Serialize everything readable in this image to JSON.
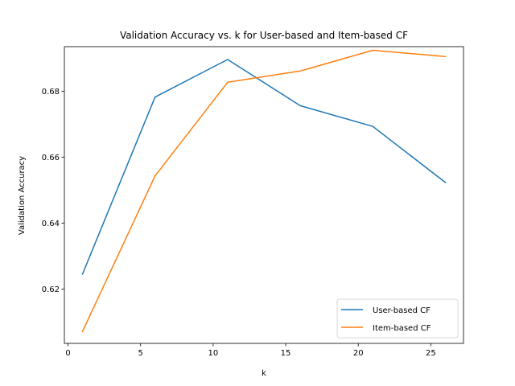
{
  "chart_data": {
    "type": "line",
    "title": "Validation Accuracy vs. k for User-based and Item-based CF",
    "xlabel": "k",
    "ylabel": "Validation Accuracy",
    "xlim": [
      -0.25,
      27.25
    ],
    "ylim": [
      0.6035,
      0.6935
    ],
    "xticks": [
      0,
      5,
      10,
      15,
      20,
      25
    ],
    "yticks": [
      0.62,
      0.64,
      0.66,
      0.68
    ],
    "ytick_labels": [
      "0.62",
      "0.64",
      "0.66",
      "0.68"
    ],
    "x": [
      1,
      6,
      11,
      16,
      21,
      26
    ],
    "series": [
      {
        "name": "User-based CF",
        "color": "#1f77b4",
        "values": [
          0.6245,
          0.6782,
          0.6896,
          0.6756,
          0.6693,
          0.6523
        ]
      },
      {
        "name": "Item-based CF",
        "color": "#ff7f0e",
        "values": [
          0.6071,
          0.6543,
          0.6827,
          0.6861,
          0.6924,
          0.6905
        ]
      }
    ],
    "legend": "lower-right",
    "grid": false
  }
}
